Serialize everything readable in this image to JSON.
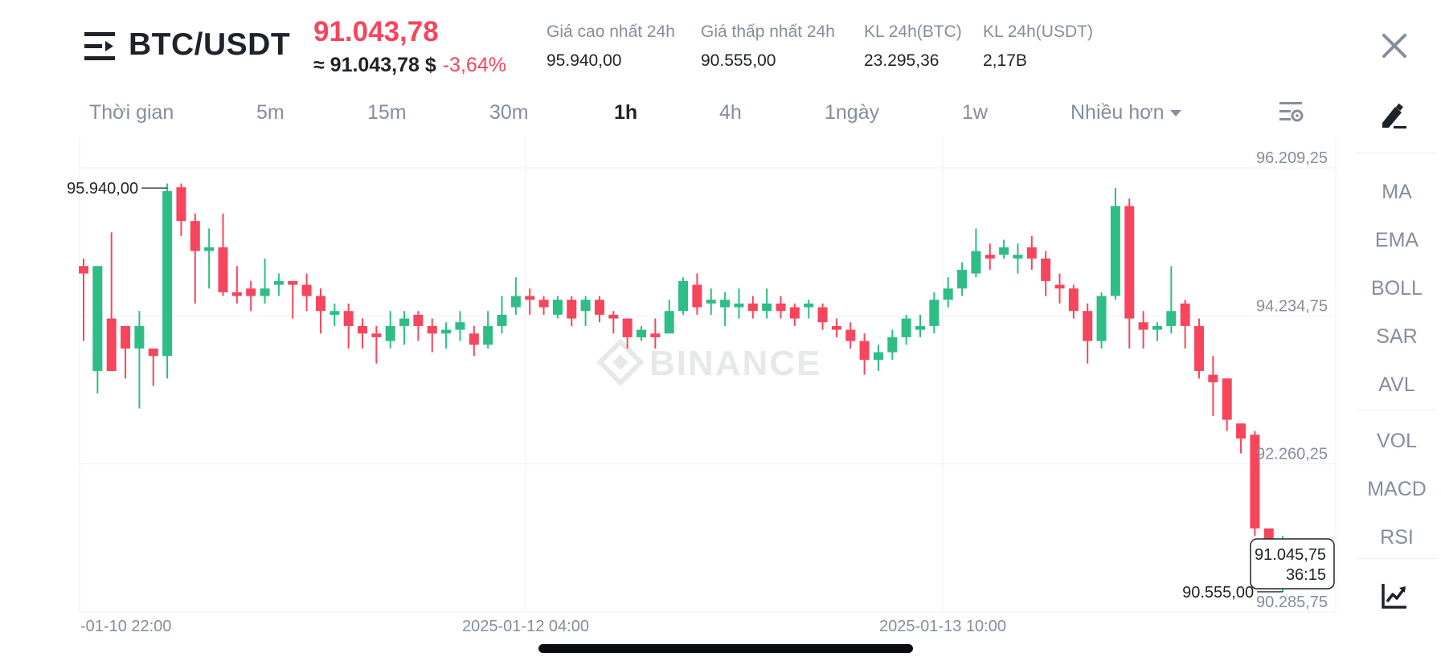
{
  "header": {
    "pair": "BTC/USDT",
    "last_price": "91.043,78",
    "approx_price": "≈ 91.043,78 $",
    "change_percent": "-3,64%",
    "stats": [
      {
        "label": "Giá cao nhất 24h",
        "value": "95.940,00"
      },
      {
        "label": "Giá thấp nhất 24h",
        "value": "90.555,00"
      },
      {
        "label": "KL 24h(BTC)",
        "value": "23.295,36"
      },
      {
        "label": "KL 24h(USDT)",
        "value": "2,17B"
      }
    ]
  },
  "timeframes": {
    "label": "Thời gian",
    "items": [
      "5m",
      "15m",
      "30m",
      "1h",
      "4h",
      "1ngày",
      "1w"
    ],
    "active": "1h",
    "more_label": "Nhiều hơn"
  },
  "indicators": {
    "main": [
      "MA",
      "EMA",
      "BOLL",
      "SAR",
      "AVL"
    ],
    "sub": [
      "VOL",
      "MACD",
      "RSI"
    ]
  },
  "colors": {
    "up": "#2ebd85",
    "down": "#f6465d",
    "text": "#1e2329",
    "muted": "#848e9c"
  },
  "icons": {
    "menu": "menu-icon",
    "close": "close-icon",
    "settings": "chart-settings-icon",
    "draw": "draw-tool-icon",
    "chart": "chart-type-icon"
  },
  "chart_data": {
    "type": "candlestick",
    "watermark": "BINANCE",
    "y_ticks": [
      "96.209,25",
      "94.234,75",
      "92.260,25",
      "90.285,75"
    ],
    "y_tick_values": [
      96209.25,
      94234.75,
      92260.25,
      90285.75
    ],
    "x_ticks": [
      "-01-10 22:00",
      "2025-01-12 04:00",
      "2025-01-13 10:00"
    ],
    "high_label": "95.940,00",
    "low_label": "90.555,00",
    "current_price_label": "91.045,75",
    "countdown": "36:15",
    "high_value": 95940,
    "low_value": 90555,
    "current_value": 91045.75,
    "candles": [
      [
        94900,
        94800,
        95000,
        93900
      ],
      [
        93500,
        94900,
        94900,
        93200
      ],
      [
        94200,
        93500,
        95350,
        93500
      ],
      [
        94100,
        93800,
        94100,
        93400
      ],
      [
        93800,
        94100,
        94300,
        93000
      ],
      [
        93800,
        93700,
        93800,
        93300
      ],
      [
        93700,
        95900,
        96000,
        93400
      ],
      [
        95950,
        95500,
        96000,
        95300
      ],
      [
        95500,
        95100,
        95600,
        94400
      ],
      [
        95100,
        95150,
        95400,
        94600
      ],
      [
        95150,
        94550,
        95600,
        94500
      ],
      [
        94550,
        94500,
        94900,
        94400
      ],
      [
        94600,
        94500,
        94700,
        94300
      ],
      [
        94500,
        94600,
        95000,
        94400
      ],
      [
        94650,
        94700,
        94800,
        94500
      ],
      [
        94700,
        94650,
        94700,
        94200
      ],
      [
        94650,
        94500,
        94800,
        94300
      ],
      [
        94500,
        94300,
        94600,
        94000
      ],
      [
        94250,
        94300,
        94400,
        94100
      ],
      [
        94300,
        94100,
        94400,
        93800
      ],
      [
        94100,
        94000,
        94200,
        93800
      ],
      [
        94000,
        93950,
        94100,
        93600
      ],
      [
        93900,
        94100,
        94300,
        93800
      ],
      [
        94100,
        94200,
        94300,
        93850
      ],
      [
        94250,
        94100,
        94300,
        93900
      ],
      [
        94100,
        94000,
        94200,
        93750
      ],
      [
        94000,
        94050,
        94150,
        93800
      ],
      [
        94050,
        94150,
        94300,
        93900
      ],
      [
        94000,
        93850,
        94100,
        93700
      ],
      [
        93850,
        94100,
        94300,
        93800
      ],
      [
        94100,
        94250,
        94500,
        94000
      ],
      [
        94350,
        94500,
        94750,
        94250
      ],
      [
        94500,
        94450,
        94600,
        94250
      ],
      [
        94450,
        94350,
        94500,
        94250
      ],
      [
        94250,
        94450,
        94500,
        94200
      ],
      [
        94450,
        94200,
        94500,
        94100
      ],
      [
        94300,
        94450,
        94500,
        94100
      ],
      [
        94450,
        94250,
        94500,
        94150
      ],
      [
        94250,
        94200,
        94300,
        94000
      ],
      [
        94200,
        93950,
        94200,
        93800
      ],
      [
        93950,
        94050,
        94100,
        93900
      ],
      [
        94000,
        93950,
        94200,
        93800
      ],
      [
        94000,
        94300,
        94450,
        94000
      ],
      [
        94300,
        94700,
        94750,
        94250
      ],
      [
        94650,
        94350,
        94800,
        94250
      ],
      [
        94400,
        94450,
        94600,
        94250
      ],
      [
        94350,
        94450,
        94550,
        94100
      ],
      [
        94350,
        94400,
        94600,
        94200
      ],
      [
        94400,
        94300,
        94500,
        94200
      ],
      [
        94300,
        94400,
        94600,
        94200
      ],
      [
        94400,
        94300,
        94500,
        94200
      ],
      [
        94350,
        94200,
        94400,
        94100
      ],
      [
        94350,
        94400,
        94450,
        94200
      ],
      [
        94350,
        94150,
        94400,
        94050
      ],
      [
        94100,
        94050,
        94200,
        93950
      ],
      [
        94050,
        93900,
        94150,
        93800
      ],
      [
        93900,
        93650,
        94000,
        93450
      ],
      [
        93650,
        93750,
        93850,
        93500
      ],
      [
        93750,
        93950,
        94050,
        93650
      ],
      [
        93950,
        94200,
        94250,
        93850
      ],
      [
        94050,
        94100,
        94250,
        93950
      ],
      [
        94100,
        94450,
        94550,
        94000
      ],
      [
        94450,
        94600,
        94750,
        94350
      ],
      [
        94600,
        94850,
        94950,
        94500
      ],
      [
        94800,
        95100,
        95400,
        94750
      ],
      [
        95050,
        95000,
        95200,
        94850
      ],
      [
        95050,
        95150,
        95250,
        95000
      ],
      [
        95000,
        95050,
        95200,
        94800
      ],
      [
        95150,
        95000,
        95300,
        94850
      ],
      [
        95000,
        94700,
        95100,
        94500
      ],
      [
        94650,
        94600,
        94800,
        94400
      ],
      [
        94600,
        94300,
        94650,
        94200
      ],
      [
        94300,
        93900,
        94400,
        93600
      ],
      [
        93900,
        94500,
        94550,
        93800
      ],
      [
        94500,
        95700,
        95940,
        94450
      ],
      [
        95700,
        94200,
        95800,
        93800
      ],
      [
        94150,
        94050,
        94300,
        93800
      ],
      [
        94050,
        94100,
        94150,
        93900
      ],
      [
        94100,
        94300,
        94900,
        94000
      ],
      [
        94400,
        94100,
        94450,
        93800
      ],
      [
        94100,
        93500,
        94200,
        93400
      ],
      [
        93450,
        93350,
        93700,
        92900
      ],
      [
        93400,
        92850,
        93400,
        92700
      ],
      [
        92800,
        92600,
        92800,
        92400
      ],
      [
        92650,
        91400,
        92700,
        91300
      ],
      [
        91400,
        90950,
        91350,
        90800
      ],
      [
        90950,
        91050,
        91300,
        90555
      ]
    ]
  }
}
